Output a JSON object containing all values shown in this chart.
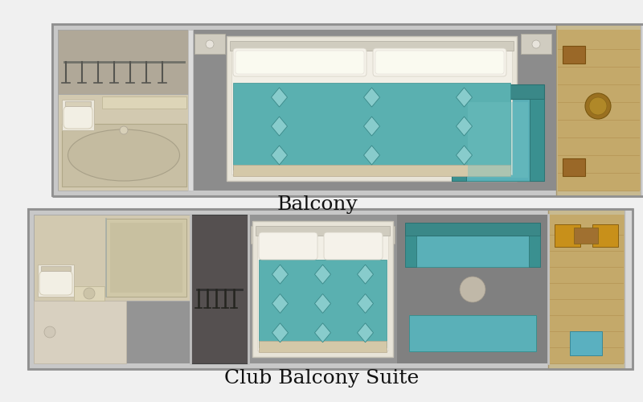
{
  "bg_color": "#f0f0f0",
  "title1": "Balcony",
  "title2": "Club Balcony Suite",
  "title_fontsize": 18,
  "title_color": "#111111",
  "wall_outer": "#c8c8c8",
  "wall_inner": "#d5d5d5",
  "wall_edge": "#aaaaaa",
  "floor_main": "#8c8c8c",
  "floor_main2": "#949494",
  "floor_bath": "#d2c9b0",
  "floor_bath2": "#c8bfa4",
  "floor_closet_dark": "#5a5550",
  "floor_balcony": "#c4a96a",
  "balcony_plank": "#b89858",
  "balcony_rail": "#d8d8d8",
  "balcony_ceil": "#ddd8c8",
  "bed_frame": "#e8e4d8",
  "bed_mattress": "#f2efe6",
  "bed_pillow": "#f5f2ea",
  "bed_pillow2": "#fafaf0",
  "duvet_teal": "#5ab0b0",
  "duvet_teal2": "#7acaca",
  "duvet_diamond": "#88cccc",
  "sofa_teal": "#5ab0b8",
  "sofa_dark": "#3a9090",
  "sofa_back": "#3a8888",
  "wood_table": "#a07030",
  "wood_chair": "#9a6828",
  "wood_chair2": "#c8901a",
  "nightstand": "#d0ccc0",
  "nightstand_edge": "#b0aca0",
  "lamp": "#e8e4dc",
  "toilet_body": "#ece8dc",
  "toilet_seat": "#f2efe4",
  "bath_fixture": "#d8d0b8",
  "shower_glass": "#c0c8c0",
  "mirror": "#d0d8d8",
  "closet_bar": "#404038",
  "closet_hanger": "#303028",
  "white_wall": "#e8e8e8",
  "light_wall": "#dcdcdc",
  "separator": "#c0c0c0"
}
